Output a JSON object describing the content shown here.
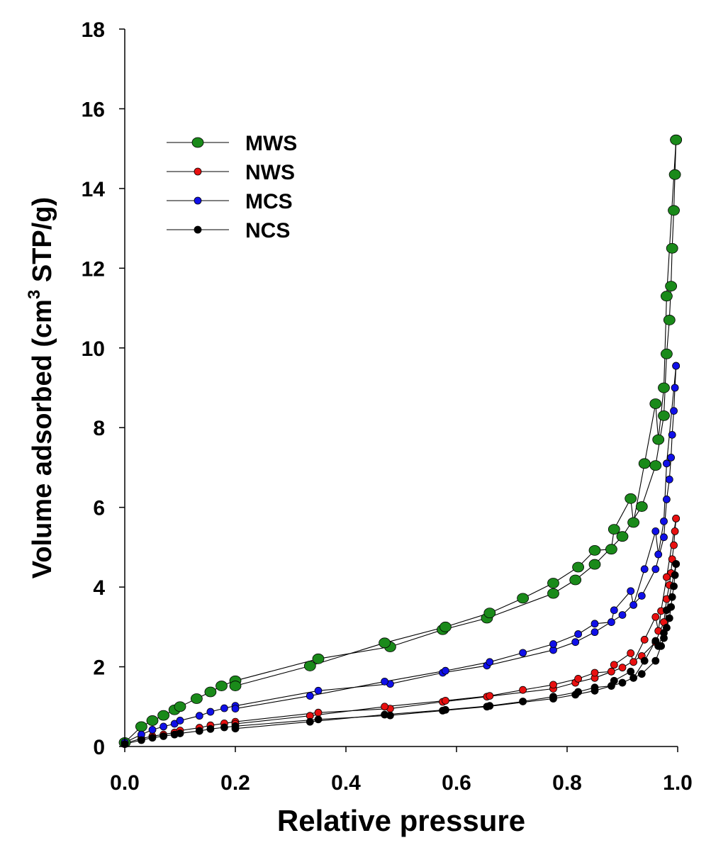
{
  "chart_data": {
    "type": "scatter",
    "xlabel": "Relative pressure",
    "ylabel_main": "Volume adsorbed (cm",
    "ylabel_sup": "3",
    "ylabel_tail": " STP/g)",
    "xlim": [
      0,
      1
    ],
    "ylim": [
      0,
      18
    ],
    "x_ticks": [
      "0.0",
      "0.2",
      "0.4",
      "0.6",
      "0.8",
      "1.0"
    ],
    "y_ticks": [
      "0",
      "2",
      "4",
      "6",
      "8",
      "10",
      "12",
      "14",
      "16",
      "18"
    ],
    "grid": false,
    "legend_position": "top-left",
    "series": [
      {
        "name": "MWS",
        "color": "#1a8a1a",
        "marker": "large",
        "adsorption": [
          [
            0.0,
            0.1
          ],
          [
            0.03,
            0.5
          ],
          [
            0.05,
            0.65
          ],
          [
            0.07,
            0.78
          ],
          [
            0.09,
            0.92
          ],
          [
            0.1,
            1.0
          ],
          [
            0.13,
            1.2
          ],
          [
            0.155,
            1.37
          ],
          [
            0.175,
            1.52
          ],
          [
            0.2,
            1.65
          ],
          [
            0.35,
            2.2
          ],
          [
            0.48,
            2.5
          ],
          [
            0.575,
            2.93
          ],
          [
            0.655,
            3.22
          ],
          [
            0.775,
            3.84
          ],
          [
            0.815,
            4.18
          ],
          [
            0.85,
            4.57
          ],
          [
            0.9,
            5.27
          ],
          [
            0.935,
            6.02
          ],
          [
            0.96,
            7.05
          ],
          [
            0.975,
            8.3
          ],
          [
            0.98,
            9.85
          ],
          [
            0.985,
            10.7
          ],
          [
            0.988,
            11.55
          ],
          [
            0.99,
            12.5
          ],
          [
            0.993,
            13.45
          ],
          [
            0.995,
            14.35
          ],
          [
            0.997,
            15.22
          ]
        ],
        "desorption": [
          [
            0.997,
            15.22
          ],
          [
            0.98,
            11.3
          ],
          [
            0.975,
            9.0
          ],
          [
            0.965,
            7.7
          ],
          [
            0.96,
            8.6
          ],
          [
            0.94,
            7.1
          ],
          [
            0.92,
            5.62
          ],
          [
            0.915,
            6.22
          ],
          [
            0.885,
            5.45
          ],
          [
            0.88,
            4.95
          ],
          [
            0.85,
            4.92
          ],
          [
            0.82,
            4.5
          ],
          [
            0.775,
            4.1
          ],
          [
            0.72,
            3.72
          ],
          [
            0.66,
            3.35
          ],
          [
            0.58,
            3.0
          ],
          [
            0.47,
            2.6
          ],
          [
            0.335,
            2.02
          ],
          [
            0.2,
            1.52
          ]
        ]
      },
      {
        "name": "NWS",
        "color": "#e81010",
        "marker": "small",
        "adsorption": [
          [
            0.0,
            0.08
          ],
          [
            0.03,
            0.2
          ],
          [
            0.05,
            0.26
          ],
          [
            0.07,
            0.3
          ],
          [
            0.09,
            0.35
          ],
          [
            0.1,
            0.4
          ],
          [
            0.135,
            0.47
          ],
          [
            0.155,
            0.53
          ],
          [
            0.18,
            0.58
          ],
          [
            0.2,
            0.62
          ],
          [
            0.35,
            0.85
          ],
          [
            0.48,
            0.95
          ],
          [
            0.575,
            1.12
          ],
          [
            0.655,
            1.25
          ],
          [
            0.775,
            1.45
          ],
          [
            0.815,
            1.6
          ],
          [
            0.85,
            1.72
          ],
          [
            0.9,
            1.98
          ],
          [
            0.935,
            2.27
          ],
          [
            0.96,
            2.62
          ],
          [
            0.975,
            3.12
          ],
          [
            0.98,
            3.7
          ],
          [
            0.985,
            4.05
          ],
          [
            0.988,
            4.35
          ],
          [
            0.99,
            4.7
          ],
          [
            0.993,
            5.05
          ],
          [
            0.995,
            5.4
          ],
          [
            0.997,
            5.72
          ]
        ],
        "desorption": [
          [
            0.997,
            5.72
          ],
          [
            0.98,
            4.25
          ],
          [
            0.97,
            3.4
          ],
          [
            0.965,
            2.9
          ],
          [
            0.96,
            3.25
          ],
          [
            0.94,
            2.68
          ],
          [
            0.92,
            2.12
          ],
          [
            0.915,
            2.34
          ],
          [
            0.885,
            2.05
          ],
          [
            0.88,
            1.88
          ],
          [
            0.85,
            1.85
          ],
          [
            0.82,
            1.7
          ],
          [
            0.775,
            1.55
          ],
          [
            0.72,
            1.42
          ],
          [
            0.66,
            1.27
          ],
          [
            0.58,
            1.15
          ],
          [
            0.47,
            1.0
          ],
          [
            0.335,
            0.77
          ],
          [
            0.2,
            0.57
          ]
        ]
      },
      {
        "name": "MCS",
        "color": "#1010e8",
        "marker": "small",
        "adsorption": [
          [
            0.0,
            0.1
          ],
          [
            0.03,
            0.3
          ],
          [
            0.05,
            0.42
          ],
          [
            0.07,
            0.5
          ],
          [
            0.09,
            0.57
          ],
          [
            0.1,
            0.65
          ],
          [
            0.135,
            0.77
          ],
          [
            0.155,
            0.87
          ],
          [
            0.18,
            0.96
          ],
          [
            0.2,
            1.02
          ],
          [
            0.35,
            1.4
          ],
          [
            0.48,
            1.57
          ],
          [
            0.575,
            1.85
          ],
          [
            0.655,
            2.03
          ],
          [
            0.775,
            2.42
          ],
          [
            0.815,
            2.62
          ],
          [
            0.85,
            2.87
          ],
          [
            0.9,
            3.3
          ],
          [
            0.935,
            3.78
          ],
          [
            0.96,
            4.45
          ],
          [
            0.975,
            5.25
          ],
          [
            0.98,
            6.2
          ],
          [
            0.985,
            6.7
          ],
          [
            0.988,
            7.25
          ],
          [
            0.99,
            7.82
          ],
          [
            0.993,
            8.42
          ],
          [
            0.995,
            9.0
          ],
          [
            0.997,
            9.55
          ]
        ],
        "desorption": [
          [
            0.997,
            9.55
          ],
          [
            0.98,
            7.1
          ],
          [
            0.975,
            5.65
          ],
          [
            0.965,
            4.82
          ],
          [
            0.96,
            5.4
          ],
          [
            0.94,
            4.45
          ],
          [
            0.92,
            3.55
          ],
          [
            0.915,
            3.9
          ],
          [
            0.885,
            3.42
          ],
          [
            0.88,
            3.12
          ],
          [
            0.85,
            3.08
          ],
          [
            0.82,
            2.82
          ],
          [
            0.775,
            2.57
          ],
          [
            0.72,
            2.35
          ],
          [
            0.66,
            2.12
          ],
          [
            0.58,
            1.9
          ],
          [
            0.47,
            1.63
          ],
          [
            0.335,
            1.27
          ],
          [
            0.2,
            0.95
          ]
        ]
      },
      {
        "name": "NCS",
        "color": "#000000",
        "marker": "small",
        "adsorption": [
          [
            0.0,
            0.06
          ],
          [
            0.03,
            0.16
          ],
          [
            0.05,
            0.22
          ],
          [
            0.07,
            0.26
          ],
          [
            0.09,
            0.3
          ],
          [
            0.1,
            0.33
          ],
          [
            0.135,
            0.39
          ],
          [
            0.155,
            0.44
          ],
          [
            0.18,
            0.48
          ],
          [
            0.2,
            0.51
          ],
          [
            0.35,
            0.68
          ],
          [
            0.48,
            0.78
          ],
          [
            0.575,
            0.9
          ],
          [
            0.655,
            1.0
          ],
          [
            0.775,
            1.2
          ],
          [
            0.815,
            1.3
          ],
          [
            0.85,
            1.4
          ],
          [
            0.9,
            1.6
          ],
          [
            0.935,
            1.82
          ],
          [
            0.96,
            2.15
          ],
          [
            0.97,
            2.52
          ],
          [
            0.975,
            2.72
          ],
          [
            0.98,
            2.98
          ],
          [
            0.985,
            3.22
          ],
          [
            0.988,
            3.5
          ],
          [
            0.99,
            3.75
          ],
          [
            0.993,
            4.02
          ],
          [
            0.995,
            4.3
          ],
          [
            0.997,
            4.58
          ]
        ],
        "desorption": [
          [
            0.997,
            4.58
          ],
          [
            0.98,
            3.42
          ],
          [
            0.975,
            2.85
          ],
          [
            0.965,
            2.52
          ],
          [
            0.96,
            2.65
          ],
          [
            0.94,
            2.15
          ],
          [
            0.92,
            1.72
          ],
          [
            0.915,
            1.88
          ],
          [
            0.885,
            1.65
          ],
          [
            0.88,
            1.52
          ],
          [
            0.85,
            1.48
          ],
          [
            0.82,
            1.37
          ],
          [
            0.775,
            1.25
          ],
          [
            0.72,
            1.13
          ],
          [
            0.66,
            1.02
          ],
          [
            0.58,
            0.92
          ],
          [
            0.47,
            0.8
          ],
          [
            0.335,
            0.62
          ],
          [
            0.2,
            0.45
          ]
        ]
      }
    ]
  }
}
